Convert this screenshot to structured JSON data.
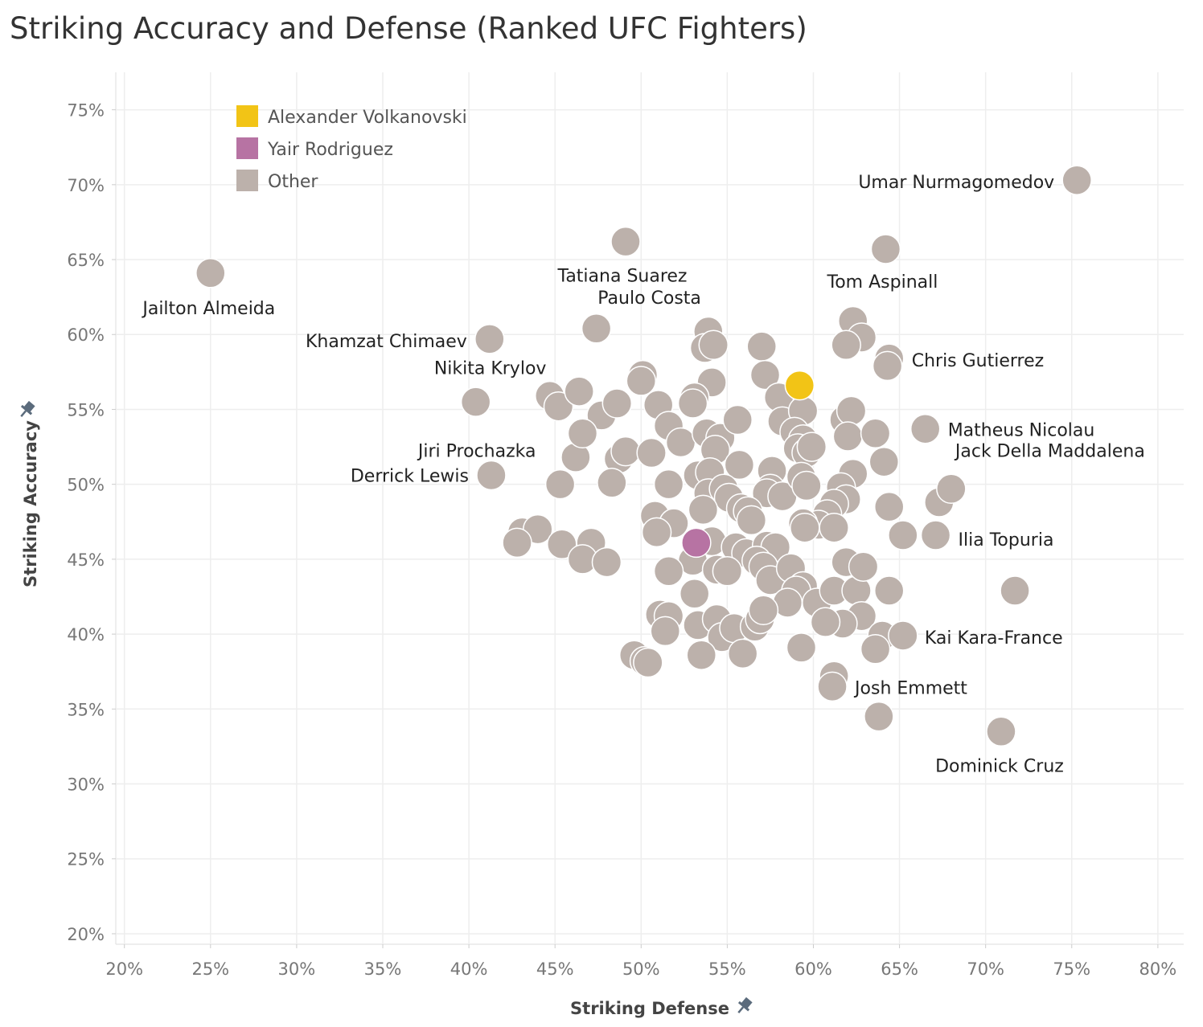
{
  "chart_data": {
    "type": "scatter",
    "title": "Striking Accuracy and Defense (Ranked UFC Fighters)",
    "xlabel": "Striking Defense",
    "ylabel": "Striking Accuracy",
    "xlim": [
      19.5,
      81.5
    ],
    "ylim": [
      19.3,
      77.5
    ],
    "xticks": [
      20,
      25,
      30,
      35,
      40,
      45,
      50,
      55,
      60,
      65,
      70,
      75,
      80
    ],
    "yticks": [
      20,
      25,
      30,
      35,
      40,
      45,
      50,
      55,
      60,
      65,
      70,
      75
    ],
    "tick_suffix": "%",
    "grid": true,
    "legend_position": "top-left",
    "legend": [
      {
        "name": "Alexander Volkanovski",
        "color": "#F2C416"
      },
      {
        "name": "Yair Rodriguez",
        "color": "#B773A3"
      },
      {
        "name": "Other",
        "color": "#BCB1AB"
      }
    ],
    "series": [
      {
        "name": "Alexander Volkanovski",
        "color": "#F2C416",
        "points": [
          [
            59.2,
            56.6
          ]
        ]
      },
      {
        "name": "Yair Rodriguez",
        "color": "#B773A3",
        "points": [
          [
            53.2,
            46.1
          ]
        ]
      },
      {
        "name": "Other",
        "color": "#BCB1AB",
        "points": [
          [
            75.3,
            70.3
          ],
          [
            25.0,
            64.1
          ],
          [
            49.1,
            66.2
          ],
          [
            64.2,
            65.7
          ],
          [
            47.4,
            60.4
          ],
          [
            41.2,
            59.7
          ],
          [
            62.3,
            60.9
          ],
          [
            62.8,
            59.8
          ],
          [
            61.9,
            59.3
          ],
          [
            64.4,
            58.4
          ],
          [
            64.3,
            57.9
          ],
          [
            53.9,
            60.2
          ],
          [
            53.7,
            59.1
          ],
          [
            54.2,
            59.3
          ],
          [
            57.0,
            59.2
          ],
          [
            57.2,
            57.3
          ],
          [
            54.1,
            56.8
          ],
          [
            50.1,
            57.3
          ],
          [
            50.0,
            56.9
          ],
          [
            40.4,
            55.5
          ],
          [
            44.7,
            55.9
          ],
          [
            45.2,
            55.2
          ],
          [
            46.4,
            56.2
          ],
          [
            47.7,
            54.6
          ],
          [
            48.6,
            55.4
          ],
          [
            51.0,
            55.3
          ],
          [
            51.6,
            53.9
          ],
          [
            52.3,
            52.8
          ],
          [
            53.1,
            55.8
          ],
          [
            53.0,
            55.4
          ],
          [
            53.8,
            53.4
          ],
          [
            54.6,
            53.1
          ],
          [
            54.3,
            52.3
          ],
          [
            55.6,
            54.3
          ],
          [
            58.0,
            55.8
          ],
          [
            58.2,
            54.2
          ],
          [
            59.4,
            54.9
          ],
          [
            58.9,
            53.5
          ],
          [
            59.4,
            53.0
          ],
          [
            59.1,
            52.4
          ],
          [
            59.6,
            52.1
          ],
          [
            59.9,
            52.5
          ],
          [
            61.8,
            54.3
          ],
          [
            62.2,
            54.9
          ],
          [
            62.0,
            53.2
          ],
          [
            63.6,
            53.4
          ],
          [
            66.5,
            53.7
          ],
          [
            64.1,
            51.5
          ],
          [
            62.3,
            50.7
          ],
          [
            61.6,
            49.8
          ],
          [
            61.9,
            49.0
          ],
          [
            61.2,
            48.7
          ],
          [
            60.8,
            48.0
          ],
          [
            60.3,
            47.3
          ],
          [
            61.2,
            47.1
          ],
          [
            59.4,
            47.4
          ],
          [
            59.5,
            47.1
          ],
          [
            64.4,
            48.5
          ],
          [
            67.3,
            48.8
          ],
          [
            68.0,
            49.7
          ],
          [
            65.2,
            46.6
          ],
          [
            67.1,
            46.6
          ],
          [
            71.7,
            42.9
          ],
          [
            41.3,
            50.6
          ],
          [
            45.3,
            50.0
          ],
          [
            46.2,
            51.8
          ],
          [
            46.6,
            53.4
          ],
          [
            48.7,
            51.7
          ],
          [
            49.1,
            52.2
          ],
          [
            48.3,
            50.1
          ],
          [
            50.6,
            52.1
          ],
          [
            51.6,
            50.0
          ],
          [
            53.3,
            50.6
          ],
          [
            54.0,
            50.8
          ],
          [
            55.7,
            51.3
          ],
          [
            57.6,
            50.9
          ],
          [
            57.5,
            49.7
          ],
          [
            57.3,
            49.4
          ],
          [
            58.2,
            49.2
          ],
          [
            59.3,
            50.5
          ],
          [
            59.6,
            49.9
          ],
          [
            53.9,
            49.4
          ],
          [
            54.8,
            49.7
          ],
          [
            55.1,
            49.1
          ],
          [
            53.6,
            48.3
          ],
          [
            55.8,
            48.4
          ],
          [
            56.2,
            48.2
          ],
          [
            56.4,
            47.6
          ],
          [
            50.8,
            47.9
          ],
          [
            51.9,
            47.4
          ],
          [
            50.9,
            46.8
          ],
          [
            43.1,
            46.8
          ],
          [
            44.0,
            47.0
          ],
          [
            42.8,
            46.1
          ],
          [
            45.4,
            46.0
          ],
          [
            47.1,
            46.1
          ],
          [
            46.6,
            45.0
          ],
          [
            48.0,
            44.8
          ],
          [
            54.1,
            46.2
          ],
          [
            55.5,
            45.8
          ],
          [
            56.1,
            45.4
          ],
          [
            57.3,
            45.9
          ],
          [
            57.8,
            45.8
          ],
          [
            56.7,
            44.9
          ],
          [
            57.1,
            44.5
          ],
          [
            53.0,
            44.9
          ],
          [
            54.4,
            44.3
          ],
          [
            55.0,
            44.2
          ],
          [
            51.6,
            44.2
          ],
          [
            53.1,
            42.7
          ],
          [
            57.5,
            43.6
          ],
          [
            58.7,
            44.4
          ],
          [
            59.4,
            43.2
          ],
          [
            59.0,
            42.9
          ],
          [
            58.5,
            42.1
          ],
          [
            60.2,
            42.1
          ],
          [
            61.2,
            42.9
          ],
          [
            62.5,
            42.9
          ],
          [
            61.9,
            44.8
          ],
          [
            62.9,
            44.5
          ],
          [
            64.4,
            42.9
          ],
          [
            62.8,
            41.2
          ],
          [
            61.7,
            40.7
          ],
          [
            60.7,
            40.8
          ],
          [
            64.0,
            39.9
          ],
          [
            63.6,
            39.0
          ],
          [
            65.2,
            39.9
          ],
          [
            59.3,
            39.1
          ],
          [
            51.1,
            41.3
          ],
          [
            51.6,
            41.2
          ],
          [
            51.4,
            40.2
          ],
          [
            53.3,
            40.6
          ],
          [
            54.4,
            41.0
          ],
          [
            54.7,
            39.8
          ],
          [
            55.4,
            40.4
          ],
          [
            56.6,
            40.5
          ],
          [
            56.9,
            41.0
          ],
          [
            57.1,
            41.6
          ],
          [
            49.6,
            38.6
          ],
          [
            50.2,
            38.2
          ],
          [
            50.4,
            38.1
          ],
          [
            53.5,
            38.6
          ],
          [
            55.9,
            38.7
          ],
          [
            61.2,
            37.2
          ],
          [
            61.1,
            36.5
          ],
          [
            63.8,
            34.5
          ],
          [
            70.9,
            33.5
          ]
        ]
      }
    ],
    "annotations": [
      {
        "text": "Umar Nurmagomedov",
        "x": 75.3,
        "y": 70.3
      },
      {
        "text": "Jailton Almeida",
        "x": 25.0,
        "y": 64.1
      },
      {
        "text": "Tatiana Suarez",
        "x": 49.1,
        "y": 66.2
      },
      {
        "text": "Tom Aspinall",
        "x": 64.2,
        "y": 65.7
      },
      {
        "text": "Paulo Costa",
        "x": 47.4,
        "y": 60.4
      },
      {
        "text": "Khamzat Chimaev",
        "x": 41.2,
        "y": 59.7
      },
      {
        "text": "Chris Gutierrez",
        "x": 64.4,
        "y": 58.4
      },
      {
        "text": "Nikita Krylov",
        "x": 50.1,
        "y": 57.3
      },
      {
        "text": "Matheus Nicolau",
        "x": 66.5,
        "y": 53.7
      },
      {
        "text": "Jiri Prochazka",
        "x": 46.6,
        "y": 53.4
      },
      {
        "text": "Jack Della Maddalena",
        "x": 68.0,
        "y": 49.7
      },
      {
        "text": "Derrick Lewis",
        "x": 41.3,
        "y": 50.6
      },
      {
        "text": "Ilia Topuria",
        "x": 67.1,
        "y": 46.6
      },
      {
        "text": "Kai Kara-France",
        "x": 65.2,
        "y": 39.9
      },
      {
        "text": "Josh Emmett",
        "x": 61.1,
        "y": 36.5
      },
      {
        "text": "Dominick Cruz",
        "x": 70.9,
        "y": 33.5
      }
    ]
  }
}
